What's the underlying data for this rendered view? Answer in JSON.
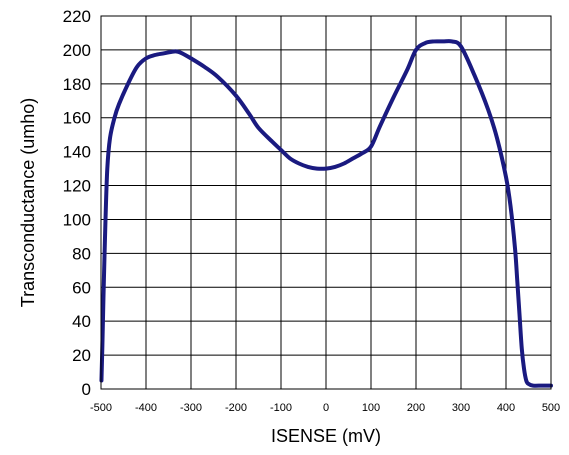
{
  "chart_data": {
    "type": "line",
    "title": "",
    "xlabel": "ISENSE (mV)",
    "ylabel": "Transconductance (umho)",
    "xlim": [
      -500,
      500
    ],
    "ylim": [
      0,
      220
    ],
    "xticks": [
      -500,
      -400,
      -300,
      -200,
      -100,
      0,
      100,
      200,
      300,
      400,
      500
    ],
    "yticks": [
      0,
      20,
      40,
      60,
      80,
      100,
      120,
      140,
      160,
      180,
      200,
      220
    ],
    "grid": true,
    "legend": "none",
    "series": [
      {
        "color": "#1a1a80",
        "x": [
          -499,
          -497,
          -494,
          -490,
          -486,
          -480,
          -470,
          -460,
          -440,
          -420,
          -400,
          -380,
          -360,
          -340,
          -330,
          -320,
          -300,
          -270,
          -240,
          -200,
          -170,
          -150,
          -120,
          -100,
          -80,
          -60,
          -40,
          -20,
          0,
          20,
          40,
          60,
          80,
          100,
          120,
          150,
          180,
          200,
          220,
          240,
          260,
          280,
          300,
          330,
          360,
          380,
          400,
          410,
          420,
          425,
          430,
          435,
          440,
          445,
          450,
          460,
          480,
          500
        ],
        "y": [
          5,
          25,
          60,
          100,
          130,
          148,
          160,
          168,
          180,
          190,
          195,
          197,
          198,
          199,
          199,
          198,
          195,
          190,
          184,
          173,
          162,
          154,
          146,
          141,
          136,
          133,
          131,
          130,
          130,
          131,
          133,
          136,
          139,
          143,
          155,
          172,
          188,
          200,
          204,
          205,
          205,
          205,
          202,
          185,
          165,
          148,
          125,
          108,
          83,
          64,
          44,
          24,
          12,
          5,
          3,
          2,
          2,
          2
        ]
      }
    ]
  }
}
